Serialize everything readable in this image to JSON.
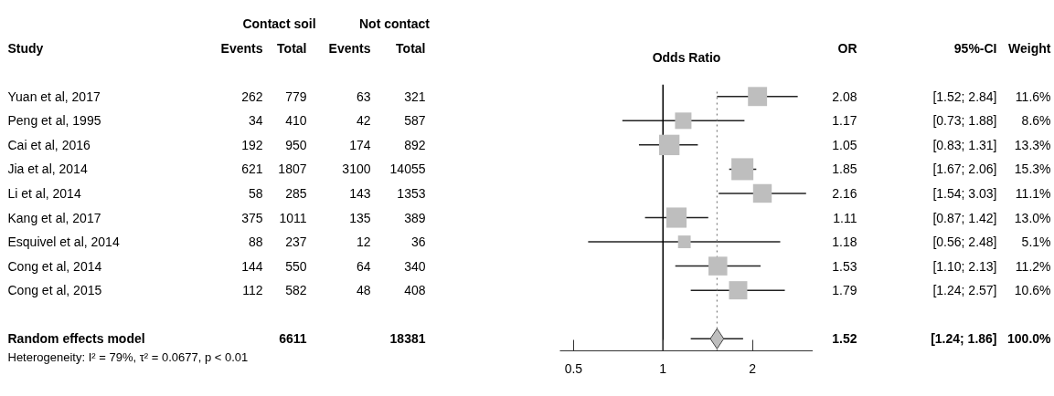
{
  "chart_data": [
    {
      "type": "other",
      "annotations": [
        "Contact soil",
        "Not contact",
        "Study",
        "Events",
        "Total",
        "Events",
        "Total",
        "Yuan et al, 2017",
        "262",
        "779",
        "63",
        "321",
        "Peng et al, 1995",
        "34",
        "410",
        "42",
        "587",
        "Cai et al, 2016",
        "192",
        "950",
        "174",
        "892",
        "Jia et al, 2014",
        "621",
        "1807",
        "3100",
        "14055",
        "Li et al, 2014",
        "58",
        "285",
        "143",
        "1353",
        "Kang et al, 2017",
        "375",
        "1011",
        "135",
        "389",
        "Esquivel et al, 2014",
        "88",
        "237",
        "12",
        "36",
        "Cong et al, 2014",
        "144",
        "550",
        "64",
        "340",
        "Cong et al, 2015",
        "112",
        "582",
        "48",
        "408",
        "Random effects model",
        "6611",
        "18381",
        "Heterogeneity: I² = 79%, τ² = 0.0677, p < 0.01"
      ]
    },
    {
      "type": "bubble",
      "title": "Odds Ratio",
      "orientation": "horizontal",
      "categories": [
        null,
        null,
        null,
        null,
        null,
        null,
        null,
        null,
        null,
        null,
        null
      ],
      "series": [
        {
          "type": "bubble",
          "marker": "square",
          "color": "#bebebe",
          "values": [
            2.08,
            1.17,
            1.05,
            1.85,
            2.16,
            1.11,
            1.18,
            1.53,
            1.79,
            null,
            null
          ],
          "errors": [
            [
              1.52,
              2.84
            ],
            [
              0.73,
              1.88
            ],
            [
              0.83,
              1.31
            ],
            [
              1.67,
              2.06
            ],
            [
              1.54,
              3.03
            ],
            [
              0.87,
              1.42
            ],
            [
              0.56,
              2.48
            ],
            [
              1.1,
              2.13
            ],
            [
              1.24,
              2.57
            ],
            null,
            null
          ],
          "sizes": [
            0.758,
            0.562,
            0.869,
            1,
            0.725,
            0.85,
            0.333,
            0.732,
            0.693,
            null,
            null
          ]
        },
        {
          "type": "scatter",
          "marker": "diamond",
          "color": "#bebebe",
          "values": [
            null,
            null,
            null,
            null,
            null,
            null,
            null,
            null,
            null,
            null,
            1.52
          ],
          "errors": [
            null,
            null,
            null,
            null,
            null,
            null,
            null,
            null,
            null,
            null,
            [
              1.24,
              1.86
            ]
          ]
        }
      ],
      "log": "x",
      "xlim": [
        0.45,
        3.2
      ],
      "xticks": [
        0.5,
        1,
        2
      ],
      "tick_labels": "x",
      "grid": false,
      "ref_lines": [
        {
          "axis": "x",
          "value": 1,
          "color": "#000000",
          "line_style": "solid"
        },
        {
          "axis": "x",
          "value": 1.52,
          "color": "#808080",
          "line_style": "dotted"
        }
      ]
    },
    {
      "type": "other",
      "annotations": [
        "OR",
        "95%-CI",
        "Weight",
        "2.08",
        "[1.52; 2.84]",
        "11.6%",
        "1.17",
        "[0.73; 1.88]",
        "8.6%",
        "1.05",
        "[0.83; 1.31]",
        "13.3%",
        "1.85",
        "[1.67; 2.06]",
        "15.3%",
        "2.16",
        "[1.54; 3.03]",
        "11.1%",
        "1.11",
        "[0.87; 1.42]",
        "13.0%",
        "1.18",
        "[0.56; 2.48]",
        "5.1%",
        "1.53",
        "[1.10; 2.13]",
        "11.2%",
        "1.79",
        "[1.24; 2.57]",
        "10.6%",
        "1.52",
        "[1.24; 1.86]",
        "100.0%"
      ]
    }
  ]
}
